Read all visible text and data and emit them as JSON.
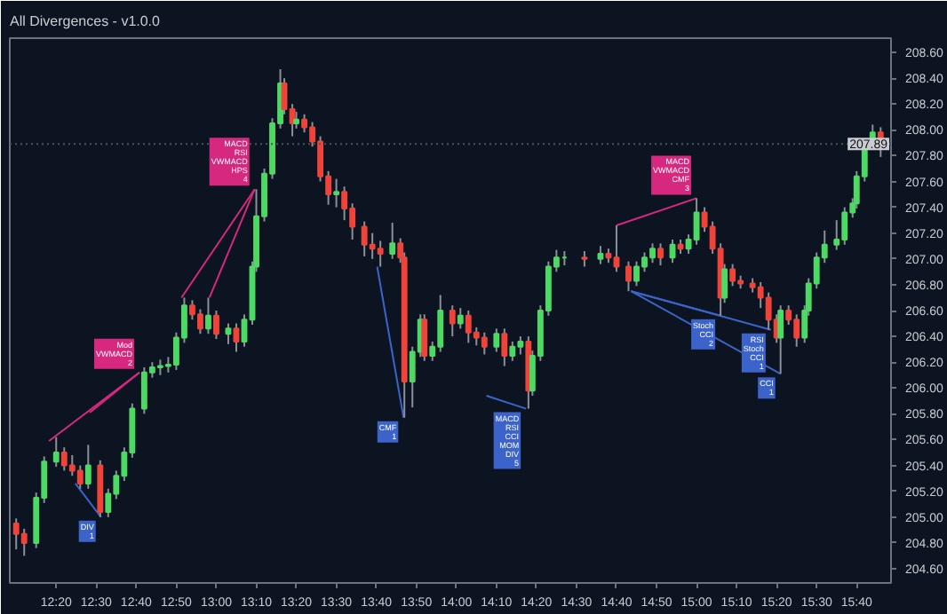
{
  "chart_data": {
    "type": "candlestick",
    "title": "All Divergences - v1.0.0",
    "x": [
      12.1667,
      12.2,
      12.25,
      12.2833,
      12.3333,
      12.3667,
      12.4,
      12.4333,
      12.4667,
      12.5167,
      12.55,
      12.5833,
      12.6167,
      12.65,
      12.7,
      12.7333,
      12.7667,
      12.8,
      12.8333,
      12.8667,
      12.9,
      12.9333,
      12.9667,
      13.0,
      13.05,
      13.0833,
      13.1167,
      13.15,
      13.1667,
      13.2,
      13.2333,
      13.2667,
      13.2833,
      13.3167,
      13.3333,
      13.3667,
      13.4,
      13.4333,
      13.4667,
      13.5,
      13.5333,
      13.5667,
      13.6167,
      13.65,
      13.6833,
      13.7333,
      13.7667,
      13.7833,
      13.8167,
      13.85,
      13.8667,
      13.9,
      13.9333,
      13.9833,
      14.0167,
      14.05,
      14.0833,
      14.1167,
      14.1667,
      14.2,
      14.2333,
      14.2667,
      14.3,
      14.3167,
      14.35,
      14.3833,
      14.4167,
      14.45,
      14.5333,
      14.6,
      14.6333,
      14.6667,
      14.7167,
      14.75,
      14.7833,
      14.8167,
      14.85,
      14.9,
      14.9333,
      14.9667,
      15.0,
      15.0333,
      15.0667,
      15.1,
      15.1167,
      15.15,
      15.1833,
      15.2333,
      15.2667,
      15.3,
      15.3333,
      15.35,
      15.3833,
      15.4167,
      15.45,
      15.4667,
      15.5,
      15.5333,
      15.5833,
      15.6167,
      15.65,
      15.6667,
      15.7,
      15.7333,
      15.7667
    ],
    "ohlc": [
      [
        204.95,
        204.99,
        204.75,
        204.87
      ],
      [
        204.87,
        204.91,
        204.7,
        204.8
      ],
      [
        204.8,
        205.19,
        204.76,
        205.15
      ],
      [
        205.15,
        205.47,
        205.11,
        205.43
      ],
      [
        205.43,
        205.62,
        205.39,
        205.5
      ],
      [
        205.5,
        205.54,
        205.36,
        205.4
      ],
      [
        205.4,
        205.48,
        205.32,
        205.36
      ],
      [
        205.36,
        205.4,
        205.22,
        205.26
      ],
      [
        205.26,
        205.56,
        205.22,
        205.4
      ],
      [
        205.4,
        205.44,
        205.0,
        205.04
      ],
      [
        205.04,
        205.22,
        205.0,
        205.18
      ],
      [
        205.18,
        205.36,
        205.14,
        205.32
      ],
      [
        205.32,
        205.54,
        205.28,
        205.5
      ],
      [
        205.5,
        205.88,
        205.46,
        205.84
      ],
      [
        205.84,
        206.16,
        205.8,
        206.12
      ],
      [
        206.12,
        206.2,
        206.08,
        206.16
      ],
      [
        206.16,
        206.22,
        206.1,
        206.17
      ],
      [
        206.17,
        206.24,
        206.12,
        206.18
      ],
      [
        206.18,
        206.43,
        206.14,
        206.39
      ],
      [
        206.39,
        206.7,
        206.35,
        206.64
      ],
      [
        206.64,
        206.68,
        206.53,
        206.57
      ],
      [
        206.57,
        206.61,
        206.42,
        206.46
      ],
      [
        206.46,
        206.7,
        206.42,
        206.56
      ],
      [
        206.56,
        206.6,
        206.38,
        206.42
      ],
      [
        206.42,
        206.5,
        206.34,
        206.46
      ],
      [
        206.46,
        206.5,
        206.28,
        206.36
      ],
      [
        206.36,
        206.57,
        206.32,
        206.53
      ],
      [
        206.53,
        206.98,
        206.49,
        206.94
      ],
      [
        206.94,
        207.54,
        206.9,
        207.33
      ],
      [
        207.33,
        207.7,
        207.29,
        207.66
      ],
      [
        207.66,
        208.09,
        207.62,
        208.05
      ],
      [
        208.05,
        208.47,
        208.01,
        208.36
      ],
      [
        208.36,
        208.4,
        208.12,
        208.16
      ],
      [
        208.16,
        208.2,
        207.95,
        208.05
      ],
      [
        208.05,
        208.14,
        208.01,
        208.08
      ],
      [
        208.08,
        208.12,
        207.98,
        208.02
      ],
      [
        208.02,
        208.06,
        207.87,
        207.91
      ],
      [
        207.91,
        207.95,
        207.6,
        207.64
      ],
      [
        207.64,
        207.68,
        207.42,
        207.5
      ],
      [
        207.5,
        207.62,
        207.4,
        207.52
      ],
      [
        207.52,
        207.56,
        207.3,
        207.39
      ],
      [
        207.39,
        207.43,
        207.15,
        207.25
      ],
      [
        207.25,
        207.29,
        207.02,
        207.11
      ],
      [
        207.11,
        207.2,
        207.0,
        207.08
      ],
      [
        207.08,
        207.14,
        206.94,
        207.04
      ],
      [
        207.04,
        207.28,
        207.0,
        207.12
      ],
      [
        207.12,
        207.16,
        206.97,
        207.01
      ],
      [
        207.01,
        207.05,
        205.77,
        206.05
      ],
      [
        206.05,
        206.32,
        205.85,
        206.28
      ],
      [
        206.28,
        206.57,
        206.24,
        206.53
      ],
      [
        206.53,
        206.57,
        206.21,
        206.25
      ],
      [
        206.25,
        206.36,
        206.21,
        206.32
      ],
      [
        206.32,
        206.72,
        206.28,
        206.6
      ],
      [
        206.6,
        206.64,
        206.4,
        206.5
      ],
      [
        206.5,
        206.62,
        206.46,
        206.56
      ],
      [
        206.56,
        206.6,
        206.35,
        206.43
      ],
      [
        206.43,
        206.47,
        206.33,
        206.39
      ],
      [
        206.39,
        206.43,
        206.26,
        206.32
      ],
      [
        206.32,
        206.46,
        206.28,
        206.42
      ],
      [
        206.42,
        206.46,
        206.17,
        206.25
      ],
      [
        206.25,
        206.36,
        206.21,
        206.32
      ],
      [
        206.32,
        206.4,
        206.26,
        206.36
      ],
      [
        206.36,
        206.4,
        205.84,
        205.98
      ],
      [
        205.98,
        206.29,
        205.94,
        206.25
      ],
      [
        206.25,
        206.64,
        206.21,
        206.6
      ],
      [
        206.6,
        206.98,
        206.56,
        206.94
      ],
      [
        206.94,
        207.07,
        206.9,
        207.01
      ],
      [
        207.01,
        207.06,
        206.95,
        207.01
      ],
      [
        207.01,
        207.06,
        206.94,
        207.0
      ],
      [
        207.0,
        207.1,
        206.96,
        207.04
      ],
      [
        207.04,
        207.08,
        206.97,
        207.01
      ],
      [
        207.01,
        207.26,
        206.9,
        206.94
      ],
      [
        206.94,
        206.98,
        206.75,
        206.83
      ],
      [
        206.83,
        206.98,
        206.79,
        206.94
      ],
      [
        206.94,
        207.05,
        206.9,
        207.01
      ],
      [
        207.01,
        207.12,
        206.97,
        207.08
      ],
      [
        207.08,
        207.12,
        206.95,
        207.01
      ],
      [
        207.01,
        207.15,
        206.97,
        207.11
      ],
      [
        207.11,
        207.15,
        207.04,
        207.08
      ],
      [
        207.08,
        207.19,
        207.04,
        207.15
      ],
      [
        207.15,
        207.47,
        207.11,
        207.36
      ],
      [
        207.36,
        207.4,
        207.21,
        207.25
      ],
      [
        207.25,
        207.29,
        207.04,
        207.08
      ],
      [
        207.08,
        207.12,
        206.56,
        206.7
      ],
      [
        206.7,
        206.96,
        206.66,
        206.92
      ],
      [
        206.92,
        206.96,
        206.79,
        206.83
      ],
      [
        206.83,
        206.87,
        206.77,
        206.81
      ],
      [
        206.81,
        206.85,
        206.74,
        206.78
      ],
      [
        206.78,
        206.82,
        206.62,
        206.7
      ],
      [
        206.7,
        206.74,
        206.45,
        206.53
      ],
      [
        206.53,
        206.57,
        206.35,
        206.39
      ],
      [
        206.39,
        206.64,
        206.11,
        206.6
      ],
      [
        206.6,
        206.64,
        206.49,
        206.53
      ],
      [
        206.53,
        206.57,
        206.32,
        206.39
      ],
      [
        206.39,
        206.64,
        206.35,
        206.6
      ],
      [
        206.6,
        206.85,
        206.56,
        206.81
      ],
      [
        206.81,
        207.05,
        206.77,
        207.01
      ],
      [
        207.01,
        207.22,
        206.97,
        207.11
      ],
      [
        207.11,
        207.3,
        207.07,
        207.15
      ],
      [
        207.15,
        207.4,
        207.11,
        207.36
      ],
      [
        207.36,
        207.47,
        207.32,
        207.43
      ],
      [
        207.43,
        207.68,
        207.39,
        207.64
      ],
      [
        207.64,
        207.93,
        207.6,
        207.89
      ],
      [
        207.89,
        208.04,
        207.85,
        207.98
      ],
      [
        207.98,
        208.02,
        207.79,
        207.89
      ]
    ],
    "colors": [
      "#f0433a",
      "#f0433a",
      "#4cd964",
      "#4cd964",
      "#4cd964",
      "#f0433a",
      "#f0433a",
      "#f0433a",
      "#4cd964",
      "#f0433a",
      "#4cd964",
      "#4cd964",
      "#4cd964",
      "#4cd964",
      "#4cd964",
      "#4cd964",
      "#4cd964",
      "#4cd964",
      "#4cd964",
      "#4cd964",
      "#f0433a",
      "#f0433a",
      "#4cd964",
      "#f0433a",
      "#4cd964",
      "#f0433a",
      "#4cd964",
      "#4cd964",
      "#4cd964",
      "#4cd964",
      "#4cd964",
      "#4cd964",
      "#f0433a",
      "#f0433a",
      "#4cd964",
      "#f0433a",
      "#f0433a",
      "#f0433a",
      "#f0433a",
      "#4cd964",
      "#f0433a",
      "#f0433a",
      "#f0433a",
      "#f0433a",
      "#f0433a",
      "#4cd964",
      "#f0433a",
      "#f0433a",
      "#4cd964",
      "#4cd964",
      "#f0433a",
      "#4cd964",
      "#4cd964",
      "#f0433a",
      "#4cd964",
      "#f0433a",
      "#f0433a",
      "#f0433a",
      "#4cd964",
      "#f0433a",
      "#4cd964",
      "#4cd964",
      "#f0433a",
      "#4cd964",
      "#4cd964",
      "#4cd964",
      "#4cd964",
      "#4cd964",
      "#f0433a",
      "#4cd964",
      "#f0433a",
      "#f0433a",
      "#f0433a",
      "#4cd964",
      "#4cd964",
      "#4cd964",
      "#f0433a",
      "#4cd964",
      "#f0433a",
      "#4cd964",
      "#4cd964",
      "#f0433a",
      "#f0433a",
      "#f0433a",
      "#4cd964",
      "#f0433a",
      "#f0433a",
      "#f0433a",
      "#f0433a",
      "#f0433a",
      "#f0433a",
      "#4cd964",
      "#f0433a",
      "#f0433a",
      "#4cd964",
      "#4cd964",
      "#4cd964",
      "#4cd964",
      "#4cd964",
      "#4cd964",
      "#4cd964",
      "#4cd964",
      "#4cd964",
      "#4cd964",
      "#f0433a"
    ],
    "series": [
      {
        "type": "line",
        "color": "#3b63c9",
        "x": [
          12.4133,
          12.52
        ],
        "values": [
          205.26,
          205.0
        ]
      },
      {
        "type": "line",
        "color": "#d6287f",
        "x": [
          12.3033,
          12.68
        ],
        "values": [
          205.59,
          206.12
        ]
      },
      {
        "type": "line",
        "color": "#d6287f",
        "x": [
          12.4733,
          12.68
        ],
        "values": [
          205.81,
          206.12
        ]
      },
      {
        "type": "line",
        "color": "#d6287f",
        "x": [
          12.855,
          13.16
        ],
        "values": [
          206.7,
          207.54
        ]
      },
      {
        "type": "line",
        "color": "#d6287f",
        "x": [
          12.9717,
          13.16
        ],
        "values": [
          206.7,
          207.54
        ]
      },
      {
        "type": "line",
        "color": "#3b63c9",
        "x": [
          13.67,
          13.78
        ],
        "values": [
          206.94,
          205.77
        ]
      },
      {
        "type": "line",
        "color": "#3b63c9",
        "x": [
          14.125,
          14.29
        ],
        "values": [
          205.94,
          205.84
        ]
      },
      {
        "type": "line",
        "color": "#d6287f",
        "x": [
          14.667,
          15.0
        ],
        "values": [
          207.26,
          207.47
        ]
      },
      {
        "type": "line",
        "color": "#3b63c9",
        "x": [
          14.727,
          15.1
        ],
        "values": [
          206.75,
          206.56
        ]
      },
      {
        "type": "line",
        "color": "#3b63c9",
        "x": [
          14.727,
          15.31
        ],
        "values": [
          206.75,
          206.45
        ]
      },
      {
        "type": "line",
        "color": "#3b63c9",
        "x": [
          14.727,
          15.35
        ],
        "values": [
          206.75,
          206.11
        ]
      }
    ],
    "annotations": [
      {
        "text": "DIV\n1",
        "x": 12.52,
        "y": 205.0
      },
      {
        "text": "Mod\nVWMACD\n2",
        "x": 12.68,
        "y": 206.12
      },
      {
        "text": "MACD\nRSI\nVWMACD\nHPS\n4",
        "x": 13.16,
        "y": 207.54
      },
      {
        "text": "CMF\n1",
        "x": 13.78,
        "y": 205.77
      },
      {
        "text": "MACD\nRSI\nCCI\nMOM\nDIV\n5",
        "x": 14.29,
        "y": 205.84
      },
      {
        "text": "MACD\nVWMACD\nCMF\n3",
        "x": 15.0,
        "y": 207.47
      },
      {
        "text": "Stoch\nCCI\n2",
        "x": 15.1,
        "y": 206.56
      },
      {
        "text": "RSI\nStoch\nCCI\n1",
        "x": 15.31,
        "y": 206.45
      },
      {
        "text": "CCI\n1",
        "x": 15.35,
        "y": 206.11
      }
    ],
    "ref_lines": [
      {
        "axis": "y",
        "value": 207.89,
        "label": "207.89",
        "color": "#4a5261",
        "line_style": "dotted"
      }
    ],
    "xlim": [
      12.14,
      15.81
    ],
    "ylim": [
      204.49,
      208.71
    ],
    "xticks": [
      {
        "value": 12.3333,
        "label": "12:20"
      },
      {
        "value": 12.5,
        "label": "12:30"
      },
      {
        "value": 12.6667,
        "label": "12:40"
      },
      {
        "value": 12.8333,
        "label": "12:50"
      },
      {
        "value": 13.0,
        "label": "13:00"
      },
      {
        "value": 13.1667,
        "label": "13:10"
      },
      {
        "value": 13.3333,
        "label": "13:20"
      },
      {
        "value": 13.5,
        "label": "13:30"
      },
      {
        "value": 13.6667,
        "label": "13:40"
      },
      {
        "value": 13.8333,
        "label": "13:50"
      },
      {
        "value": 14.0,
        "label": "14:00"
      },
      {
        "value": 14.1667,
        "label": "14:10"
      },
      {
        "value": 14.3333,
        "label": "14:20"
      },
      {
        "value": 14.5,
        "label": "14:30"
      },
      {
        "value": 14.6667,
        "label": "14:40"
      },
      {
        "value": 14.8333,
        "label": "14:50"
      },
      {
        "value": 15.0,
        "label": "15:00"
      },
      {
        "value": 15.1667,
        "label": "15:10"
      },
      {
        "value": 15.3333,
        "label": "15:20"
      },
      {
        "value": 15.5,
        "label": "15:30"
      },
      {
        "value": 15.6667,
        "label": "15:40"
      }
    ],
    "yticks": [
      {
        "value": 204.6,
        "label": "204.60"
      },
      {
        "value": 204.8,
        "label": "204.80"
      },
      {
        "value": 205.0,
        "label": "205.00"
      },
      {
        "value": 205.2,
        "label": "205.20"
      },
      {
        "value": 205.4,
        "label": "205.40"
      },
      {
        "value": 205.6,
        "label": "205.60"
      },
      {
        "value": 205.8,
        "label": "205.80"
      },
      {
        "value": 206.0,
        "label": "206.00"
      },
      {
        "value": 206.2,
        "label": "206.20"
      },
      {
        "value": 206.4,
        "label": "206.40"
      },
      {
        "value": 206.6,
        "label": "206.60"
      },
      {
        "value": 206.8,
        "label": "206.80"
      },
      {
        "value": 207.0,
        "label": "207.00"
      },
      {
        "value": 207.2,
        "label": "207.20"
      },
      {
        "value": 207.4,
        "label": "207.40"
      },
      {
        "value": 207.6,
        "label": "207.60"
      },
      {
        "value": 207.8,
        "label": "207.80"
      },
      {
        "value": 208.0,
        "label": "208.00"
      },
      {
        "value": 208.2,
        "label": "208.20"
      },
      {
        "value": 208.4,
        "label": "208.40"
      },
      {
        "value": 208.6,
        "label": "208.60"
      }
    ],
    "grid": false
  }
}
